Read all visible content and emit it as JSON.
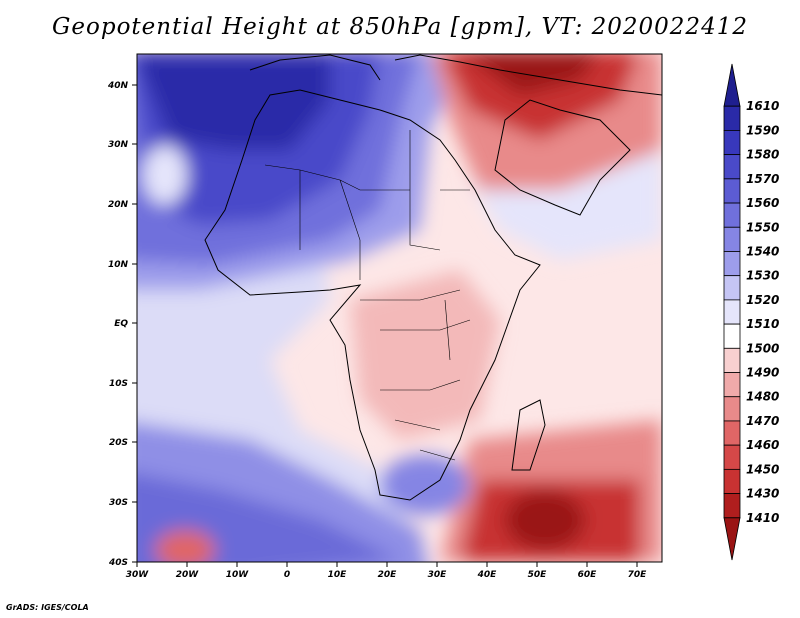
{
  "title": "Geopotential Height at 850hPa [gpm], VT: 2020022412",
  "credit": "GrADS: IGES/COLA",
  "lat_labels": [
    "40N",
    "30N",
    "20N",
    "10N",
    "EQ",
    "10S",
    "20S",
    "30S",
    "40S"
  ],
  "lon_labels": [
    "30W",
    "20W",
    "10W",
    "0",
    "10E",
    "20E",
    "30E",
    "40E",
    "50E",
    "60E",
    "70E"
  ],
  "map_extent": {
    "lon_min": -30,
    "lon_max": 75,
    "lat_min": -40,
    "lat_max": 45
  },
  "colorbar": {
    "levels": [
      "1610",
      "1590",
      "1580",
      "1570",
      "1560",
      "1550",
      "1540",
      "1530",
      "1520",
      "1510",
      "1500",
      "1490",
      "1480",
      "1470",
      "1460",
      "1450",
      "1430",
      "1410"
    ],
    "colors": [
      "#1f1f8f",
      "#2a2aa8",
      "#3838bc",
      "#4a4ac9",
      "#5c5cd3",
      "#7070dc",
      "#8585e4",
      "#9d9deb",
      "#c5c5f5",
      "#e5e5fb",
      "#ffffff",
      "#f8d0d0",
      "#f0aaaa",
      "#e88a8a",
      "#e06666",
      "#d54848",
      "#c83232",
      "#b01e1e",
      "#9a1414"
    ]
  },
  "chart_data": {
    "type": "heatmap",
    "title": "Geopotential Height at 850hPa [gpm], VT: 2020022412",
    "variable": "Geopotential Height",
    "level": "850hPa",
    "units": "gpm",
    "valid_time": "2020022412",
    "x_range": [
      -30,
      75
    ],
    "y_range": [
      -40,
      45
    ],
    "contour_levels": [
      1410,
      1430,
      1450,
      1460,
      1470,
      1480,
      1490,
      1500,
      1510,
      1520,
      1530,
      1540,
      1550,
      1560,
      1570,
      1580,
      1590,
      1610
    ]
  }
}
